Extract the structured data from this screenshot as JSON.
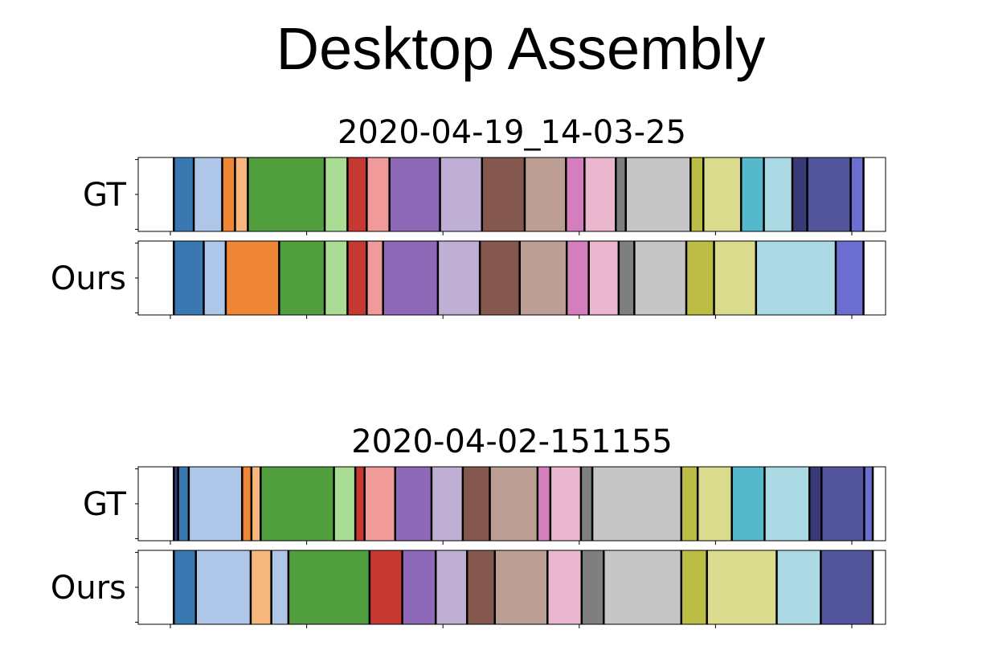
{
  "title": "Desktop Assembly",
  "palette": [
    "#ffffff",
    "#3a78b1",
    "#aec7e8",
    "#ef8636",
    "#f5b77c",
    "#519e3e",
    "#a8dd93",
    "#c53932",
    "#f09b9a",
    "#8d69b8",
    "#c0afd4",
    "#84584e",
    "#bd9e95",
    "#d57ebe",
    "#ebb7ce",
    "#7f7f7f",
    "#c6c6c6",
    "#bcbd45",
    "#dbdb8e",
    "#55b8cb",
    "#abdae4",
    "#393b79",
    "#52549c",
    "#6b6ecf"
  ],
  "chart_data": [
    {
      "type": "bar",
      "subtitle": "2020-04-19_14-03-25",
      "xlim": [
        0,
        1000
      ],
      "rows": [
        {
          "label": "GT",
          "segments": [
            {
              "start": 0,
              "end": 50,
              "color": 0
            },
            {
              "start": 50,
              "end": 78,
              "color": 1
            },
            {
              "start": 78,
              "end": 118,
              "color": 2
            },
            {
              "start": 118,
              "end": 136,
              "color": 3
            },
            {
              "start": 136,
              "end": 154,
              "color": 4
            },
            {
              "start": 154,
              "end": 262,
              "color": 5
            },
            {
              "start": 262,
              "end": 294,
              "color": 6
            },
            {
              "start": 294,
              "end": 321,
              "color": 7
            },
            {
              "start": 321,
              "end": 353,
              "color": 8
            },
            {
              "start": 353,
              "end": 424,
              "color": 9
            },
            {
              "start": 424,
              "end": 483,
              "color": 10
            },
            {
              "start": 483,
              "end": 543,
              "color": 11
            },
            {
              "start": 543,
              "end": 601,
              "color": 12
            },
            {
              "start": 601,
              "end": 627,
              "color": 13
            },
            {
              "start": 627,
              "end": 671,
              "color": 14
            },
            {
              "start": 671,
              "end": 685,
              "color": 15
            },
            {
              "start": 685,
              "end": 776,
              "color": 16
            },
            {
              "start": 776,
              "end": 794,
              "color": 17
            },
            {
              "start": 794,
              "end": 847,
              "color": 18
            },
            {
              "start": 847,
              "end": 879,
              "color": 19
            },
            {
              "start": 879,
              "end": 919,
              "color": 20
            },
            {
              "start": 919,
              "end": 940,
              "color": 21
            },
            {
              "start": 940,
              "end": 1001,
              "color": 22
            },
            {
              "start": 1001,
              "end": 1019,
              "color": 23
            },
            {
              "start": 1019,
              "end": 1050,
              "color": 0
            }
          ]
        },
        {
          "label": "Ours",
          "segments": [
            {
              "start": 0,
              "end": 50,
              "color": 0
            },
            {
              "start": 50,
              "end": 92,
              "color": 1
            },
            {
              "start": 92,
              "end": 123,
              "color": 2
            },
            {
              "start": 123,
              "end": 198,
              "color": 3
            },
            {
              "start": 198,
              "end": 262,
              "color": 5
            },
            {
              "start": 262,
              "end": 294,
              "color": 6
            },
            {
              "start": 294,
              "end": 321,
              "color": 7
            },
            {
              "start": 321,
              "end": 344,
              "color": 8
            },
            {
              "start": 344,
              "end": 421,
              "color": 9
            },
            {
              "start": 421,
              "end": 480,
              "color": 10
            },
            {
              "start": 480,
              "end": 536,
              "color": 11
            },
            {
              "start": 536,
              "end": 602,
              "color": 12
            },
            {
              "start": 602,
              "end": 633,
              "color": 13
            },
            {
              "start": 633,
              "end": 675,
              "color": 14
            },
            {
              "start": 675,
              "end": 697,
              "color": 15
            },
            {
              "start": 697,
              "end": 770,
              "color": 16
            },
            {
              "start": 770,
              "end": 809,
              "color": 17
            },
            {
              "start": 809,
              "end": 868,
              "color": 18
            },
            {
              "start": 868,
              "end": 980,
              "color": 20
            },
            {
              "start": 980,
              "end": 1019,
              "color": 23
            },
            {
              "start": 1019,
              "end": 1050,
              "color": 0
            }
          ]
        }
      ]
    },
    {
      "type": "bar",
      "subtitle": "2020-04-02-151155",
      "xlim": [
        0,
        1000
      ],
      "rows": [
        {
          "label": "GT",
          "segments": [
            {
              "start": 0,
              "end": 50,
              "color": 0
            },
            {
              "start": 50,
              "end": 56,
              "color": 21
            },
            {
              "start": 56,
              "end": 71,
              "color": 1
            },
            {
              "start": 71,
              "end": 146,
              "color": 2
            },
            {
              "start": 146,
              "end": 159,
              "color": 3
            },
            {
              "start": 159,
              "end": 172,
              "color": 4
            },
            {
              "start": 172,
              "end": 275,
              "color": 5
            },
            {
              "start": 275,
              "end": 305,
              "color": 6
            },
            {
              "start": 305,
              "end": 318,
              "color": 7
            },
            {
              "start": 318,
              "end": 361,
              "color": 8
            },
            {
              "start": 361,
              "end": 412,
              "color": 9
            },
            {
              "start": 412,
              "end": 456,
              "color": 10
            },
            {
              "start": 456,
              "end": 494,
              "color": 11
            },
            {
              "start": 494,
              "end": 561,
              "color": 12
            },
            {
              "start": 561,
              "end": 579,
              "color": 13
            },
            {
              "start": 579,
              "end": 622,
              "color": 14
            },
            {
              "start": 622,
              "end": 638,
              "color": 15
            },
            {
              "start": 638,
              "end": 763,
              "color": 16
            },
            {
              "start": 763,
              "end": 786,
              "color": 17
            },
            {
              "start": 786,
              "end": 834,
              "color": 18
            },
            {
              "start": 834,
              "end": 880,
              "color": 19
            },
            {
              "start": 880,
              "end": 943,
              "color": 20
            },
            {
              "start": 943,
              "end": 960,
              "color": 21
            },
            {
              "start": 960,
              "end": 1020,
              "color": 22
            },
            {
              "start": 1020,
              "end": 1032,
              "color": 23
            },
            {
              "start": 1032,
              "end": 1050,
              "color": 0
            }
          ]
        },
        {
          "label": "Ours",
          "segments": [
            {
              "start": 0,
              "end": 50,
              "color": 0
            },
            {
              "start": 50,
              "end": 81,
              "color": 1
            },
            {
              "start": 81,
              "end": 158,
              "color": 2
            },
            {
              "start": 158,
              "end": 187,
              "color": 4
            },
            {
              "start": 187,
              "end": 211,
              "color": 2
            },
            {
              "start": 211,
              "end": 325,
              "color": 5
            },
            {
              "start": 325,
              "end": 371,
              "color": 7
            },
            {
              "start": 371,
              "end": 418,
              "color": 9
            },
            {
              "start": 418,
              "end": 462,
              "color": 10
            },
            {
              "start": 462,
              "end": 501,
              "color": 11
            },
            {
              "start": 501,
              "end": 575,
              "color": 12
            },
            {
              "start": 575,
              "end": 623,
              "color": 14
            },
            {
              "start": 623,
              "end": 654,
              "color": 15
            },
            {
              "start": 654,
              "end": 763,
              "color": 16
            },
            {
              "start": 763,
              "end": 799,
              "color": 17
            },
            {
              "start": 799,
              "end": 897,
              "color": 18
            },
            {
              "start": 897,
              "end": 959,
              "color": 20
            },
            {
              "start": 959,
              "end": 1032,
              "color": 22
            },
            {
              "start": 1032,
              "end": 1050,
              "color": 0
            }
          ]
        }
      ]
    }
  ]
}
